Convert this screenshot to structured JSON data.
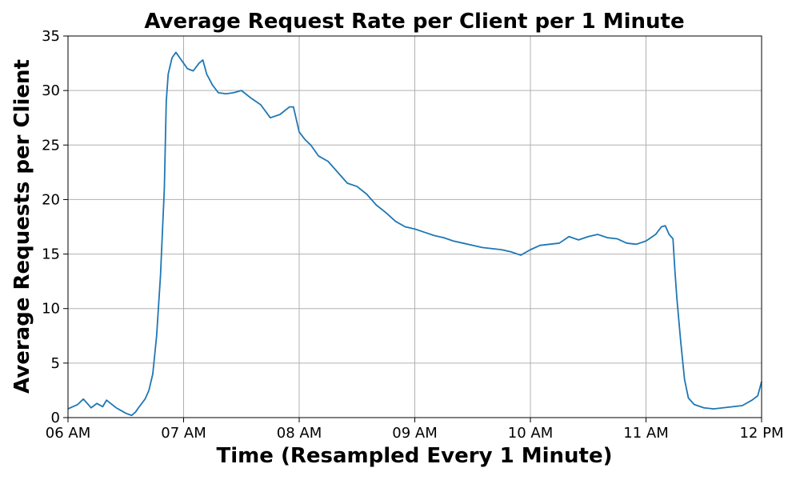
{
  "chart_data": {
    "type": "line",
    "title": "Average Request Rate per Client per 1 Minute",
    "xlabel": "Time (Resampled Every 1 Minute)",
    "ylabel": "Average Requests per Client",
    "x_ticks": [
      "06 AM",
      "07 AM",
      "08 AM",
      "09 AM",
      "10 AM",
      "11 AM",
      "12 PM"
    ],
    "y_ticks": [
      "0",
      "5",
      "10",
      "15",
      "20",
      "25",
      "30",
      "35"
    ],
    "xlim": [
      "06:00",
      "12:00"
    ],
    "ylim": [
      0,
      35
    ],
    "grid": true,
    "colors": {
      "line": "#1f77b4",
      "grid": "#b0b0b0"
    },
    "series": [
      {
        "points": [
          [
            "06:00",
            0.8
          ],
          [
            "06:05",
            1.2
          ],
          [
            "06:08",
            1.7
          ],
          [
            "06:12",
            0.9
          ],
          [
            "06:15",
            1.3
          ],
          [
            "06:18",
            1.0
          ],
          [
            "06:20",
            1.6
          ],
          [
            "06:25",
            0.9
          ],
          [
            "06:28",
            0.6
          ],
          [
            "06:30",
            0.4
          ],
          [
            "06:33",
            0.2
          ],
          [
            "06:35",
            0.5
          ],
          [
            "06:37",
            1.0
          ],
          [
            "06:40",
            1.7
          ],
          [
            "06:42",
            2.5
          ],
          [
            "06:44",
            4.0
          ],
          [
            "06:46",
            7.5
          ],
          [
            "06:48",
            13.0
          ],
          [
            "06:50",
            21.0
          ],
          [
            "06:51",
            29.0
          ],
          [
            "06:52",
            31.5
          ],
          [
            "06:54",
            33.0
          ],
          [
            "06:56",
            33.5
          ],
          [
            "06:58",
            33.0
          ],
          [
            "07:00",
            32.5
          ],
          [
            "07:02",
            32.0
          ],
          [
            "07:05",
            31.8
          ],
          [
            "07:08",
            32.5
          ],
          [
            "07:10",
            32.8
          ],
          [
            "07:12",
            31.5
          ],
          [
            "07:15",
            30.5
          ],
          [
            "07:18",
            29.8
          ],
          [
            "07:22",
            29.7
          ],
          [
            "07:26",
            29.8
          ],
          [
            "07:30",
            30.0
          ],
          [
            "07:35",
            29.3
          ],
          [
            "07:40",
            28.7
          ],
          [
            "07:45",
            27.5
          ],
          [
            "07:50",
            27.8
          ],
          [
            "07:55",
            28.5
          ],
          [
            "07:57",
            28.5
          ],
          [
            "08:00",
            26.2
          ],
          [
            "08:03",
            25.5
          ],
          [
            "08:06",
            25.0
          ],
          [
            "08:10",
            24.0
          ],
          [
            "08:15",
            23.5
          ],
          [
            "08:20",
            22.5
          ],
          [
            "08:25",
            21.5
          ],
          [
            "08:30",
            21.2
          ],
          [
            "08:35",
            20.5
          ],
          [
            "08:40",
            19.5
          ],
          [
            "08:45",
            18.8
          ],
          [
            "08:50",
            18.0
          ],
          [
            "08:55",
            17.5
          ],
          [
            "09:00",
            17.3
          ],
          [
            "09:05",
            17.0
          ],
          [
            "09:10",
            16.7
          ],
          [
            "09:15",
            16.5
          ],
          [
            "09:20",
            16.2
          ],
          [
            "09:25",
            16.0
          ],
          [
            "09:30",
            15.8
          ],
          [
            "09:35",
            15.6
          ],
          [
            "09:40",
            15.5
          ],
          [
            "09:45",
            15.4
          ],
          [
            "09:50",
            15.2
          ],
          [
            "09:55",
            14.9
          ],
          [
            "10:00",
            15.4
          ],
          [
            "10:05",
            15.8
          ],
          [
            "10:10",
            15.9
          ],
          [
            "10:15",
            16.0
          ],
          [
            "10:20",
            16.6
          ],
          [
            "10:25",
            16.3
          ],
          [
            "10:30",
            16.6
          ],
          [
            "10:35",
            16.8
          ],
          [
            "10:40",
            16.5
          ],
          [
            "10:45",
            16.4
          ],
          [
            "10:50",
            16.0
          ],
          [
            "10:55",
            15.9
          ],
          [
            "11:00",
            16.2
          ],
          [
            "11:05",
            16.8
          ],
          [
            "11:08",
            17.5
          ],
          [
            "11:10",
            17.6
          ],
          [
            "11:12",
            16.8
          ],
          [
            "11:14",
            16.4
          ],
          [
            "11:15",
            13.5
          ],
          [
            "11:16",
            11.0
          ],
          [
            "11:18",
            7.0
          ],
          [
            "11:20",
            3.5
          ],
          [
            "11:22",
            1.8
          ],
          [
            "11:25",
            1.2
          ],
          [
            "11:30",
            0.9
          ],
          [
            "11:35",
            0.8
          ],
          [
            "11:40",
            0.9
          ],
          [
            "11:45",
            1.0
          ],
          [
            "11:50",
            1.1
          ],
          [
            "11:55",
            1.6
          ],
          [
            "11:58",
            2.0
          ],
          [
            "12:00",
            3.3
          ]
        ]
      }
    ]
  }
}
